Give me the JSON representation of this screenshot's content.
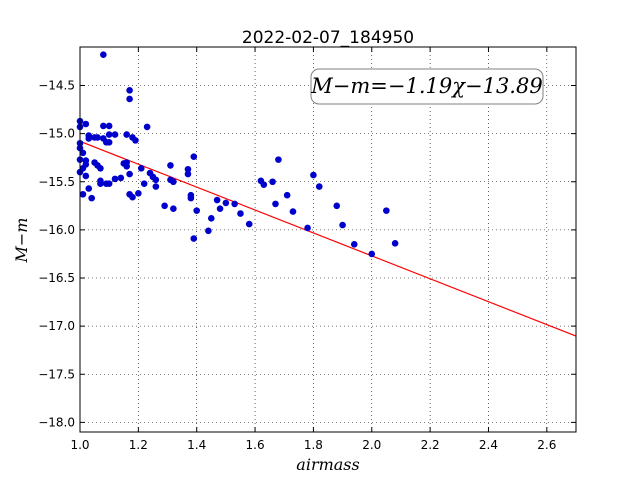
{
  "chart_data": {
    "type": "scatter",
    "title": "2022-02-07_184950",
    "xlabel": "airmass",
    "ylabel": "M−m",
    "xlim": [
      1.0,
      2.7
    ],
    "ylim": [
      -18.1,
      -14.1
    ],
    "xticks": [
      1.0,
      1.2,
      1.4,
      1.6,
      1.8,
      2.0,
      2.2,
      2.4,
      2.6
    ],
    "xtick_labels": [
      "1.0",
      "1.2",
      "1.4",
      "1.6",
      "1.8",
      "2.0",
      "2.2",
      "2.4",
      "2.6"
    ],
    "yticks": [
      -14.5,
      -15.0,
      -15.5,
      -16.0,
      -16.5,
      -17.0,
      -17.5,
      -18.0
    ],
    "ytick_labels": [
      "−14.5",
      "−15.0",
      "−15.5",
      "−16.0",
      "−16.5",
      "−17.0",
      "−17.5",
      "−18.0"
    ],
    "grid": true,
    "annotation": "M−m=−1.19χ−13.89",
    "fit": {
      "slope": -1.19,
      "intercept": -13.89,
      "color": "#ff0000"
    },
    "marker_color": "#0000cc",
    "points": [
      [
        1.0,
        -14.87
      ],
      [
        1.0,
        -14.93
      ],
      [
        1.0,
        -15.1
      ],
      [
        1.0,
        -15.15
      ],
      [
        1.0,
        -15.27
      ],
      [
        1.01,
        -15.36
      ],
      [
        1.0,
        -15.4
      ],
      [
        1.01,
        -15.2
      ],
      [
        1.02,
        -14.9
      ],
      [
        1.02,
        -15.28
      ],
      [
        1.02,
        -15.32
      ],
      [
        1.02,
        -15.44
      ],
      [
        1.03,
        -15.02
      ],
      [
        1.03,
        -15.05
      ],
      [
        1.03,
        -15.57
      ],
      [
        1.01,
        -15.63
      ],
      [
        1.04,
        -15.67
      ],
      [
        1.05,
        -15.04
      ],
      [
        1.05,
        -15.3
      ],
      [
        1.06,
        -15.33
      ],
      [
        1.07,
        -15.36
      ],
      [
        1.06,
        -15.04
      ],
      [
        1.07,
        -15.49
      ],
      [
        1.07,
        -15.52
      ],
      [
        1.08,
        -14.92
      ],
      [
        1.08,
        -14.18
      ],
      [
        1.08,
        -15.05
      ],
      [
        1.09,
        -15.09
      ],
      [
        1.09,
        -15.52
      ],
      [
        1.1,
        -14.92
      ],
      [
        1.1,
        -15.01
      ],
      [
        1.1,
        -15.09
      ],
      [
        1.1,
        -15.52
      ],
      [
        1.12,
        -15.01
      ],
      [
        1.12,
        -15.47
      ],
      [
        1.14,
        -15.46
      ],
      [
        1.15,
        -15.31
      ],
      [
        1.16,
        -15.34
      ],
      [
        1.16,
        -15.01
      ],
      [
        1.16,
        -15.3
      ],
      [
        1.17,
        -14.55
      ],
      [
        1.17,
        -14.64
      ],
      [
        1.17,
        -15.42
      ],
      [
        1.17,
        -15.63
      ],
      [
        1.18,
        -15.66
      ],
      [
        1.18,
        -15.04
      ],
      [
        1.19,
        -15.07
      ],
      [
        1.2,
        -15.62
      ],
      [
        1.21,
        -15.36
      ],
      [
        1.22,
        -15.52
      ],
      [
        1.23,
        -14.93
      ],
      [
        1.24,
        -15.41
      ],
      [
        1.25,
        -15.45
      ],
      [
        1.26,
        -15.48
      ],
      [
        1.26,
        -15.55
      ],
      [
        1.29,
        -15.75
      ],
      [
        1.31,
        -15.33
      ],
      [
        1.31,
        -15.48
      ],
      [
        1.32,
        -15.5
      ],
      [
        1.32,
        -15.78
      ],
      [
        1.37,
        -15.37
      ],
      [
        1.37,
        -15.42
      ],
      [
        1.38,
        -15.64
      ],
      [
        1.38,
        -15.67
      ],
      [
        1.39,
        -15.24
      ],
      [
        1.39,
        -16.09
      ],
      [
        1.4,
        -15.8
      ],
      [
        1.44,
        -16.01
      ],
      [
        1.45,
        -15.88
      ],
      [
        1.47,
        -15.69
      ],
      [
        1.48,
        -15.78
      ],
      [
        1.5,
        -15.72
      ],
      [
        1.53,
        -15.73
      ],
      [
        1.55,
        -15.83
      ],
      [
        1.58,
        -15.94
      ],
      [
        1.62,
        -15.49
      ],
      [
        1.63,
        -15.53
      ],
      [
        1.66,
        -15.5
      ],
      [
        1.67,
        -15.73
      ],
      [
        1.68,
        -15.27
      ],
      [
        1.71,
        -15.64
      ],
      [
        1.73,
        -15.81
      ],
      [
        1.78,
        -15.98
      ],
      [
        1.8,
        -15.43
      ],
      [
        1.82,
        -15.55
      ],
      [
        1.88,
        -15.75
      ],
      [
        1.9,
        -15.95
      ],
      [
        1.94,
        -16.15
      ],
      [
        2.0,
        -16.25
      ],
      [
        2.05,
        -15.8
      ],
      [
        2.08,
        -16.14
      ]
    ]
  }
}
